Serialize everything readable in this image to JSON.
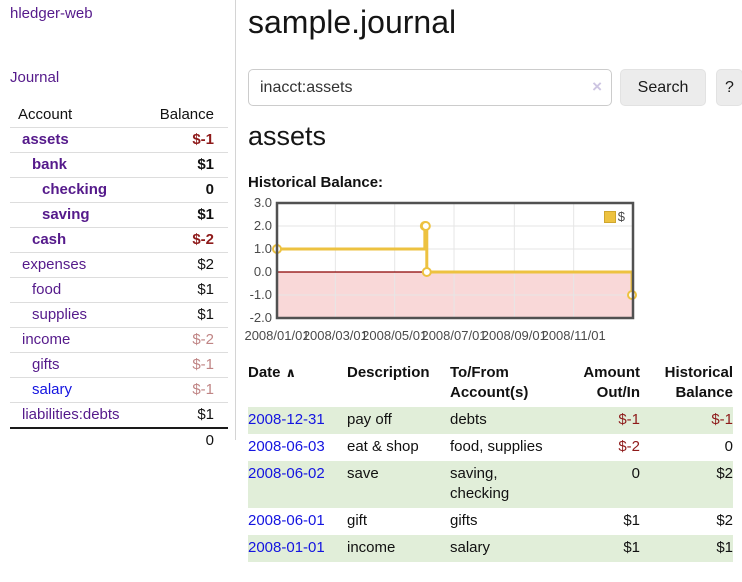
{
  "app": {
    "brand": "hledger-web",
    "nav": {
      "journal": "Journal"
    }
  },
  "sidebar": {
    "header": {
      "account": "Account",
      "balance": "Balance"
    },
    "accounts": [
      {
        "name": "assets",
        "balance": "$-1",
        "indent": 1,
        "bold": true,
        "balance_style": "neg-strong",
        "link_style": "purple"
      },
      {
        "name": "bank",
        "balance": "$1",
        "indent": 2,
        "bold": true,
        "balance_style": "normal",
        "link_style": "purple"
      },
      {
        "name": "checking",
        "balance": "0",
        "indent": 3,
        "bold": true,
        "balance_style": "normal",
        "link_style": "purple"
      },
      {
        "name": "saving",
        "balance": "$1",
        "indent": 3,
        "bold": true,
        "balance_style": "normal",
        "link_style": "purple"
      },
      {
        "name": "cash",
        "balance": "$-2",
        "indent": 2,
        "bold": true,
        "balance_style": "neg-strong",
        "link_style": "purple"
      },
      {
        "name": "expenses",
        "balance": "$2",
        "indent": 1,
        "bold": false,
        "balance_style": "normal",
        "link_style": "purple"
      },
      {
        "name": "food",
        "balance": "$1",
        "indent": 2,
        "bold": false,
        "balance_style": "normal",
        "link_style": "purple"
      },
      {
        "name": "supplies",
        "balance": "$1",
        "indent": 2,
        "bold": false,
        "balance_style": "normal",
        "link_style": "purple"
      },
      {
        "name": "income",
        "balance": "$-2",
        "indent": 1,
        "bold": false,
        "balance_style": "neg-soft",
        "link_style": "purple"
      },
      {
        "name": "gifts",
        "balance": "$-1",
        "indent": 2,
        "bold": false,
        "balance_style": "neg-soft",
        "link_style": "purple"
      },
      {
        "name": "salary",
        "balance": "$-1",
        "indent": 2,
        "bold": false,
        "balance_style": "neg-soft",
        "link_style": "blue"
      },
      {
        "name": "liabilities:debts",
        "balance": "$1",
        "indent": 1,
        "bold": false,
        "balance_style": "normal",
        "link_style": "purple"
      }
    ],
    "total": "0"
  },
  "main": {
    "title": "sample.journal",
    "search": {
      "value": "inacct:assets",
      "clear_icon": "×",
      "search_button": "Search",
      "help_button": "?"
    },
    "account_heading": "assets",
    "chart_title": "Historical Balance:"
  },
  "chart_data": {
    "type": "line",
    "step": true,
    "title": "Historical Balance:",
    "series": [
      {
        "name": "$",
        "color": "#edc240",
        "points": [
          [
            "2008-01-01",
            1
          ],
          [
            "2008-06-01",
            2
          ],
          [
            "2008-06-02",
            2
          ],
          [
            "2008-06-03",
            0
          ],
          [
            "2008-12-31",
            -1
          ]
        ]
      }
    ],
    "xlim": [
      "2008-01-01",
      "2009-01-01"
    ],
    "ylim": [
      -2,
      3
    ],
    "xticks": [
      "2008/01/01",
      "2008/03/01",
      "2008/05/01",
      "2008/07/01",
      "2008/09/01",
      "2008/11/01"
    ],
    "yticks": [
      3.0,
      2.0,
      1.0,
      0.0,
      -1.0,
      -2.0
    ],
    "grid": true,
    "legend": {
      "label": "$",
      "position": "top-right"
    },
    "negative_region_color": "#f9d8d8",
    "zero_line_color": "#8b0000"
  },
  "register": {
    "headers": {
      "date": "Date",
      "sort_icon": "∧",
      "description": "Description",
      "accounts": "To/From Account(s)",
      "amount": "Amount Out/In",
      "balance": "Historical Balance"
    },
    "rows": [
      {
        "date": "2008-12-31",
        "description": "pay off",
        "accounts": "debts",
        "amount": "$-1",
        "balance": "$-1"
      },
      {
        "date": "2008-06-03",
        "description": "eat & shop",
        "accounts": "food, supplies",
        "amount": "$-2",
        "balance": "0"
      },
      {
        "date": "2008-06-02",
        "description": "save",
        "accounts": "saving, checking",
        "amount": "0",
        "balance": "$2"
      },
      {
        "date": "2008-06-01",
        "description": "gift",
        "accounts": "gifts",
        "amount": "$1",
        "balance": "$2"
      },
      {
        "date": "2008-01-01",
        "description": "income",
        "accounts": "salary",
        "amount": "$1",
        "balance": "$1"
      }
    ]
  },
  "colors": {
    "accent_purple": "#551a8b",
    "link_blue": "#1414e0",
    "negative_strong": "#8e1a1a",
    "negative_soft": "#c08585",
    "row_green": "#e1eed9",
    "chart_line_gold": "#edc240",
    "chart_negative_fill": "#f9d8d8",
    "chart_zero_line": "#8b0000"
  }
}
